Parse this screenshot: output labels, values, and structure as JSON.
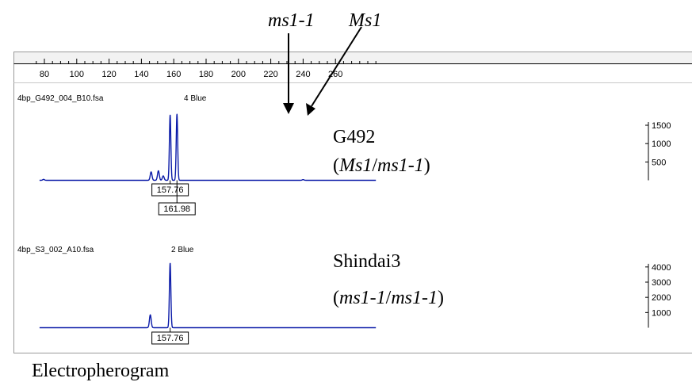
{
  "annotations": {
    "allele_left": "ms1-1",
    "allele_right": "Ms1",
    "caption": "Electropherogram"
  },
  "colors": {
    "trace": "#0a1aa8"
  },
  "chart_data": {
    "type": "line",
    "x_axis": {
      "ticks": [
        80,
        100,
        120,
        140,
        160,
        180,
        200,
        220,
        240,
        260
      ],
      "range": [
        75,
        285
      ]
    },
    "panels": [
      {
        "file": "4bp_G492_004_B10.fsa",
        "dye": "4 Blue",
        "genotype_name": "G492",
        "genotype_open": "(",
        "genotype_a1": "Ms1",
        "genotype_sep": "/",
        "genotype_a2": "ms1-1",
        "genotype_close": ")",
        "y_ticks": [
          500,
          1000,
          1500
        ],
        "y_range": [
          0,
          1900
        ],
        "peaks": [
          {
            "x": 146.0,
            "y": 230
          },
          {
            "x": 150.5,
            "y": 260
          },
          {
            "x": 153.5,
            "y": 120
          },
          {
            "x": 157.76,
            "y": 1780
          },
          {
            "x": 161.98,
            "y": 1800
          }
        ],
        "small_peaks": [
          {
            "x": 79.5,
            "y": 25
          },
          {
            "x": 240.0,
            "y": 18
          }
        ],
        "peak_labels": [
          "157.76",
          "161.98"
        ]
      },
      {
        "file": "4bp_S3_002_A10.fsa",
        "dye": "2 Blue",
        "genotype_name": "Shindai3",
        "genotype_open": "(",
        "genotype_a1": "ms1-1",
        "genotype_sep": "/",
        "genotype_a2": "ms1-1",
        "genotype_close": ")",
        "y_ticks": [
          1000,
          2000,
          3000,
          4000
        ],
        "y_range": [
          0,
          4800
        ],
        "peaks": [
          {
            "x": 145.5,
            "y": 850
          },
          {
            "x": 157.76,
            "y": 4250
          }
        ],
        "small_peaks": [],
        "peak_labels": [
          "157.76"
        ]
      }
    ]
  }
}
